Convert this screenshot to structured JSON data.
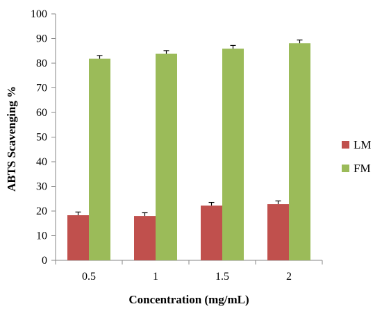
{
  "chart_data": {
    "type": "bar",
    "xlabel": "Concentration (mg/mL)",
    "ylabel": "ABTS Scavenging %",
    "ylim": [
      0,
      100
    ],
    "yticks": [
      "0",
      "10",
      "20",
      "30",
      "40",
      "50",
      "60",
      "70",
      "80",
      "90",
      "100"
    ],
    "categories": [
      "0.5",
      "1",
      "1.5",
      "2"
    ],
    "series": [
      {
        "name": "LM",
        "color": "#c0504d",
        "values": [
          18.3,
          18.0,
          22.2,
          22.8
        ],
        "errors": [
          1.3,
          1.3,
          1.3,
          1.3
        ]
      },
      {
        "name": "FM",
        "color": "#9bbb59",
        "values": [
          81.8,
          83.8,
          85.9,
          88.1
        ],
        "errors": [
          1.3,
          1.3,
          1.3,
          1.3
        ]
      }
    ],
    "error_bars": "plus",
    "grid": false,
    "legend_position": "right"
  }
}
